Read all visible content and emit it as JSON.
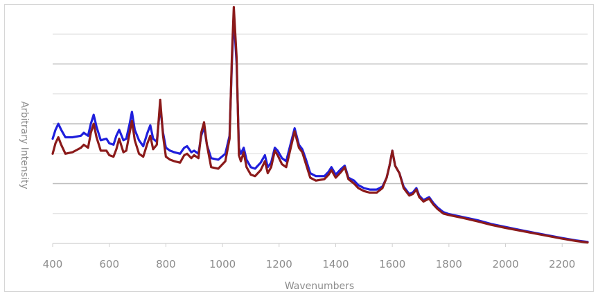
{
  "chart_data": {
    "type": "line",
    "title": "",
    "xlabel": "Wavenumbers",
    "ylabel": "Arbitrary Intensity",
    "xlim": [
      400,
      2290
    ],
    "ylim": [
      0,
      8
    ],
    "grid": true,
    "x_ticks": [
      "400",
      "600",
      "800",
      "1000",
      "1200",
      "1400",
      "1600",
      "1800",
      "2000",
      "2200"
    ],
    "y_gridlines": [
      1,
      2,
      3,
      4,
      5,
      6,
      7
    ],
    "series": [
      {
        "color": "#1f1fdc",
        "points": [
          [
            400,
            3.5
          ],
          [
            410,
            3.8
          ],
          [
            420,
            4.0
          ],
          [
            430,
            3.8
          ],
          [
            445,
            3.55
          ],
          [
            470,
            3.55
          ],
          [
            500,
            3.6
          ],
          [
            510,
            3.7
          ],
          [
            525,
            3.6
          ],
          [
            535,
            4.0
          ],
          [
            545,
            4.3
          ],
          [
            555,
            3.9
          ],
          [
            570,
            3.45
          ],
          [
            590,
            3.5
          ],
          [
            600,
            3.35
          ],
          [
            615,
            3.3
          ],
          [
            625,
            3.6
          ],
          [
            635,
            3.8
          ],
          [
            650,
            3.45
          ],
          [
            660,
            3.5
          ],
          [
            672,
            4.0
          ],
          [
            680,
            4.4
          ],
          [
            690,
            3.8
          ],
          [
            705,
            3.45
          ],
          [
            720,
            3.25
          ],
          [
            735,
            3.7
          ],
          [
            745,
            3.95
          ],
          [
            755,
            3.5
          ],
          [
            768,
            3.4
          ],
          [
            780,
            4.6
          ],
          [
            790,
            3.7
          ],
          [
            800,
            3.2
          ],
          [
            815,
            3.1
          ],
          [
            830,
            3.05
          ],
          [
            850,
            3.0
          ],
          [
            865,
            3.2
          ],
          [
            875,
            3.25
          ],
          [
            890,
            3.05
          ],
          [
            900,
            3.1
          ],
          [
            915,
            3.0
          ],
          [
            925,
            3.6
          ],
          [
            935,
            3.9
          ],
          [
            945,
            3.3
          ],
          [
            960,
            2.85
          ],
          [
            985,
            2.8
          ],
          [
            1010,
            3.0
          ],
          [
            1025,
            3.6
          ],
          [
            1033,
            6.0
          ],
          [
            1040,
            7.6
          ],
          [
            1050,
            6.0
          ],
          [
            1058,
            3.2
          ],
          [
            1065,
            3.0
          ],
          [
            1075,
            3.2
          ],
          [
            1085,
            2.8
          ],
          [
            1100,
            2.55
          ],
          [
            1115,
            2.5
          ],
          [
            1135,
            2.7
          ],
          [
            1150,
            2.95
          ],
          [
            1160,
            2.55
          ],
          [
            1172,
            2.7
          ],
          [
            1185,
            3.2
          ],
          [
            1195,
            3.1
          ],
          [
            1210,
            2.85
          ],
          [
            1225,
            2.75
          ],
          [
            1240,
            3.3
          ],
          [
            1255,
            3.85
          ],
          [
            1270,
            3.3
          ],
          [
            1282,
            3.15
          ],
          [
            1295,
            2.8
          ],
          [
            1310,
            2.35
          ],
          [
            1330,
            2.25
          ],
          [
            1360,
            2.25
          ],
          [
            1375,
            2.4
          ],
          [
            1385,
            2.55
          ],
          [
            1400,
            2.3
          ],
          [
            1420,
            2.5
          ],
          [
            1432,
            2.6
          ],
          [
            1445,
            2.2
          ],
          [
            1465,
            2.1
          ],
          [
            1480,
            1.95
          ],
          [
            1500,
            1.85
          ],
          [
            1520,
            1.8
          ],
          [
            1545,
            1.8
          ],
          [
            1565,
            1.9
          ],
          [
            1580,
            2.2
          ],
          [
            1590,
            2.6
          ],
          [
            1600,
            3.1
          ],
          [
            1610,
            2.6
          ],
          [
            1625,
            2.35
          ],
          [
            1640,
            1.9
          ],
          [
            1660,
            1.65
          ],
          [
            1672,
            1.7
          ],
          [
            1685,
            1.85
          ],
          [
            1695,
            1.6
          ],
          [
            1710,
            1.45
          ],
          [
            1730,
            1.55
          ],
          [
            1745,
            1.35
          ],
          [
            1760,
            1.2
          ],
          [
            1780,
            1.05
          ],
          [
            1800,
            0.98
          ],
          [
            1850,
            0.88
          ],
          [
            1900,
            0.78
          ],
          [
            1950,
            0.65
          ],
          [
            2000,
            0.55
          ],
          [
            2050,
            0.45
          ],
          [
            2100,
            0.36
          ],
          [
            2150,
            0.27
          ],
          [
            2200,
            0.18
          ],
          [
            2250,
            0.1
          ],
          [
            2290,
            0.05
          ]
        ]
      },
      {
        "color": "#8b1a1a",
        "points": [
          [
            400,
            3.0
          ],
          [
            410,
            3.35
          ],
          [
            420,
            3.55
          ],
          [
            430,
            3.3
          ],
          [
            445,
            3.0
          ],
          [
            470,
            3.05
          ],
          [
            500,
            3.2
          ],
          [
            510,
            3.3
          ],
          [
            525,
            3.2
          ],
          [
            535,
            3.7
          ],
          [
            545,
            4.0
          ],
          [
            555,
            3.55
          ],
          [
            570,
            3.1
          ],
          [
            590,
            3.1
          ],
          [
            600,
            2.95
          ],
          [
            615,
            2.9
          ],
          [
            625,
            3.15
          ],
          [
            635,
            3.5
          ],
          [
            650,
            3.05
          ],
          [
            660,
            3.1
          ],
          [
            672,
            3.7
          ],
          [
            680,
            4.1
          ],
          [
            690,
            3.45
          ],
          [
            705,
            3.0
          ],
          [
            720,
            2.9
          ],
          [
            735,
            3.35
          ],
          [
            745,
            3.6
          ],
          [
            755,
            3.15
          ],
          [
            768,
            3.3
          ],
          [
            780,
            4.8
          ],
          [
            790,
            3.6
          ],
          [
            800,
            2.9
          ],
          [
            815,
            2.8
          ],
          [
            830,
            2.75
          ],
          [
            850,
            2.7
          ],
          [
            865,
            2.95
          ],
          [
            875,
            3.0
          ],
          [
            890,
            2.85
          ],
          [
            900,
            2.95
          ],
          [
            915,
            2.85
          ],
          [
            925,
            3.7
          ],
          [
            935,
            4.05
          ],
          [
            945,
            3.3
          ],
          [
            960,
            2.55
          ],
          [
            985,
            2.5
          ],
          [
            1010,
            2.75
          ],
          [
            1025,
            3.5
          ],
          [
            1033,
            6.2
          ],
          [
            1040,
            7.9
          ],
          [
            1050,
            6.2
          ],
          [
            1058,
            2.95
          ],
          [
            1065,
            2.75
          ],
          [
            1075,
            3.05
          ],
          [
            1085,
            2.55
          ],
          [
            1100,
            2.3
          ],
          [
            1115,
            2.25
          ],
          [
            1135,
            2.45
          ],
          [
            1150,
            2.75
          ],
          [
            1160,
            2.35
          ],
          [
            1172,
            2.55
          ],
          [
            1185,
            3.1
          ],
          [
            1195,
            2.95
          ],
          [
            1210,
            2.65
          ],
          [
            1225,
            2.55
          ],
          [
            1240,
            3.15
          ],
          [
            1255,
            3.75
          ],
          [
            1270,
            3.2
          ],
          [
            1282,
            3.05
          ],
          [
            1295,
            2.65
          ],
          [
            1310,
            2.2
          ],
          [
            1330,
            2.1
          ],
          [
            1360,
            2.15
          ],
          [
            1375,
            2.3
          ],
          [
            1385,
            2.45
          ],
          [
            1400,
            2.2
          ],
          [
            1420,
            2.4
          ],
          [
            1432,
            2.55
          ],
          [
            1445,
            2.15
          ],
          [
            1465,
            2.0
          ],
          [
            1480,
            1.85
          ],
          [
            1500,
            1.75
          ],
          [
            1520,
            1.7
          ],
          [
            1545,
            1.7
          ],
          [
            1565,
            1.85
          ],
          [
            1580,
            2.2
          ],
          [
            1590,
            2.6
          ],
          [
            1600,
            3.1
          ],
          [
            1610,
            2.6
          ],
          [
            1625,
            2.35
          ],
          [
            1640,
            1.85
          ],
          [
            1660,
            1.6
          ],
          [
            1672,
            1.65
          ],
          [
            1685,
            1.8
          ],
          [
            1695,
            1.55
          ],
          [
            1710,
            1.4
          ],
          [
            1730,
            1.5
          ],
          [
            1745,
            1.3
          ],
          [
            1760,
            1.15
          ],
          [
            1780,
            1.0
          ],
          [
            1800,
            0.95
          ],
          [
            1850,
            0.85
          ],
          [
            1900,
            0.74
          ],
          [
            1950,
            0.62
          ],
          [
            2000,
            0.52
          ],
          [
            2050,
            0.43
          ],
          [
            2100,
            0.34
          ],
          [
            2150,
            0.25
          ],
          [
            2200,
            0.16
          ],
          [
            2250,
            0.08
          ],
          [
            2290,
            0.03
          ]
        ]
      }
    ]
  }
}
